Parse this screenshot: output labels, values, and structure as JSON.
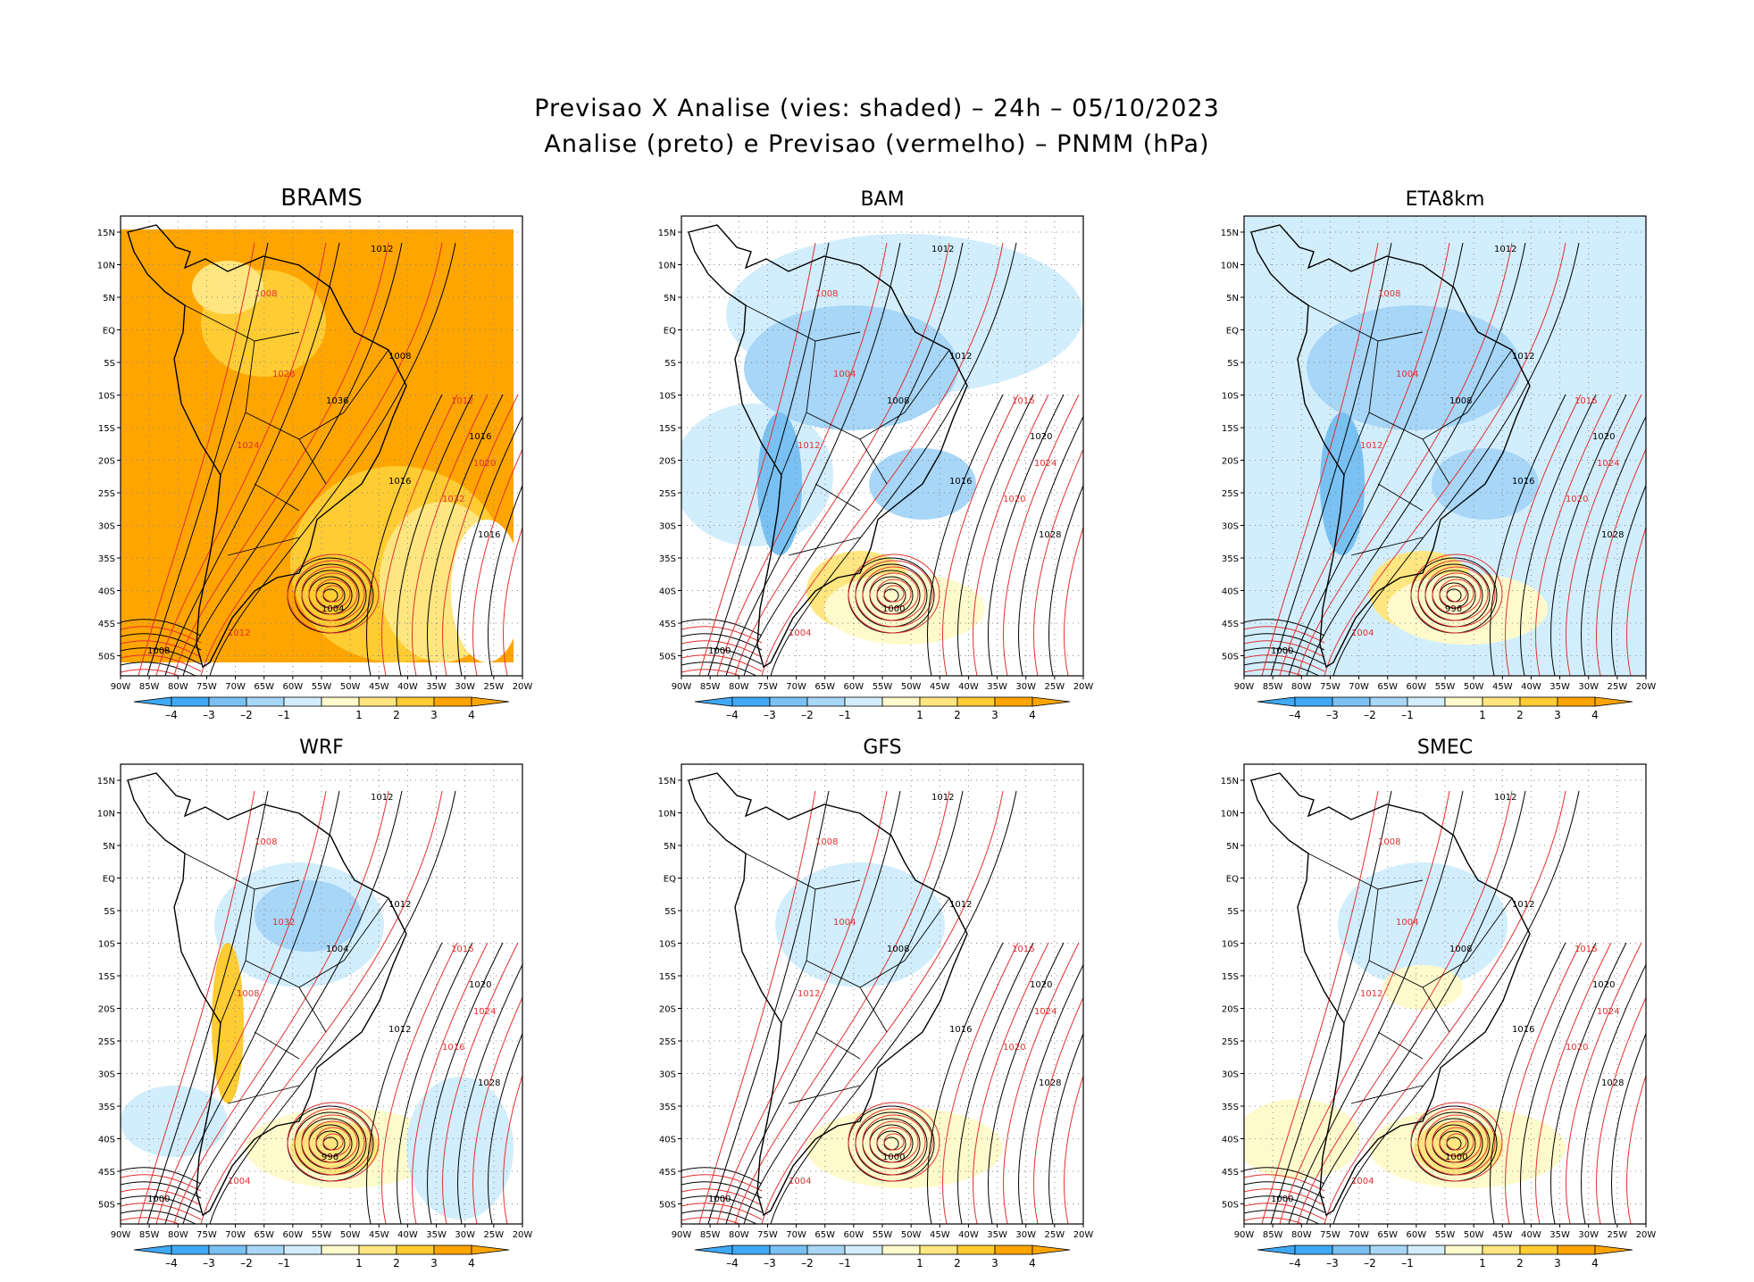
{
  "header": {
    "title_line1": "Previsao X Analise (vies: shaded) – 24h – 05/10/2023",
    "title_line2": "Analise (preto) e Previsao (vermelho) – PNMM (hPa)"
  },
  "axes": {
    "lon_labels": [
      "90W",
      "85W",
      "80W",
      "75W",
      "70W",
      "65W",
      "60W",
      "55W",
      "50W",
      "45W",
      "40W",
      "35W",
      "30W",
      "25W",
      "20W"
    ],
    "lat_labels": [
      "15N",
      "10N",
      "5N",
      "EQ",
      "5S",
      "10S",
      "15S",
      "20S",
      "25S",
      "30S",
      "35S",
      "40S",
      "45S",
      "50S"
    ]
  },
  "colorbar": {
    "labels": [
      "–4",
      "–3",
      "–2",
      "–1",
      "1",
      "2",
      "3",
      "4"
    ],
    "colors": [
      "#3fa9f5",
      "#79c1f2",
      "#a7d6f7",
      "#d2eefc",
      "#ffffff",
      "#fffacc",
      "#ffe680",
      "#ffcc33",
      "#ffa500"
    ]
  },
  "colors": {
    "analysis_contour": "#000000",
    "forecast_contour": "#e03030",
    "land_outline": "#000000",
    "grid": "#888888"
  },
  "panels": [
    {
      "name": "BRAMS",
      "bias": "warm-full",
      "low_label": "1004",
      "contour_labels": [
        "1012",
        "1008",
        "1008",
        "1012",
        "1016",
        "1020",
        "1016",
        "1028",
        "1036",
        "1024",
        "1016",
        "1032",
        "1008",
        "1012"
      ]
    },
    {
      "name": "BAM",
      "bias": "cold",
      "low_label": "1000",
      "contour_labels": [
        "1012",
        "1008",
        "1012",
        "1016",
        "1020",
        "1024",
        "1028",
        "1004",
        "1008",
        "1012",
        "1016",
        "1020",
        "1000",
        "1004"
      ]
    },
    {
      "name": "ETA8km",
      "bias": "cold-strong",
      "low_label": "996",
      "contour_labels": [
        "1012",
        "1008",
        "1012",
        "1016",
        "1020",
        "1024",
        "1028",
        "1004",
        "1008",
        "1012",
        "1016",
        "1020",
        "1000",
        "1004"
      ]
    },
    {
      "name": "WRF",
      "bias": "mixed",
      "low_label": "996",
      "contour_labels": [
        "1012",
        "1008",
        "1012",
        "1016",
        "1020",
        "1024",
        "1028",
        "1032",
        "1004",
        "1008",
        "1012",
        "1016",
        "1000",
        "1004"
      ]
    },
    {
      "name": "GFS",
      "bias": "weak",
      "low_label": "1000",
      "contour_labels": [
        "1012",
        "1008",
        "1012",
        "1016",
        "1020",
        "1024",
        "1028",
        "1004",
        "1008",
        "1012",
        "1016",
        "1020",
        "1000",
        "1004"
      ]
    },
    {
      "name": "SMEC",
      "bias": "weak-warm",
      "low_label": "1000",
      "contour_labels": [
        "1012",
        "1008",
        "1012",
        "1016",
        "1020",
        "1024",
        "1028",
        "1004",
        "1008",
        "1012",
        "1016",
        "1020",
        "1000",
        "1004"
      ]
    }
  ]
}
